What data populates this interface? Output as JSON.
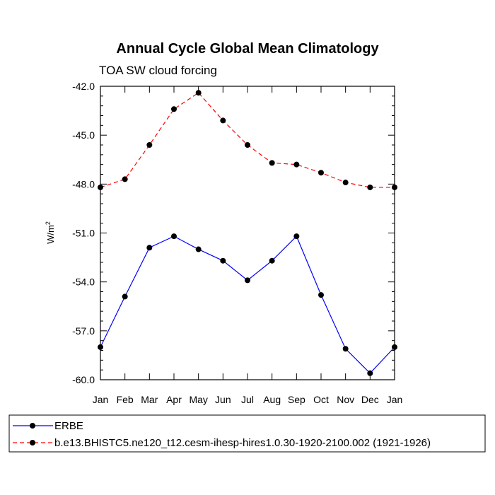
{
  "chart_data": {
    "type": "line",
    "title": "Annual Cycle Global Mean Climatology",
    "subtitle": "TOA SW cloud forcing",
    "ylabel": "W/m",
    "ylabel_sup": "2",
    "categories": [
      "Jan",
      "Feb",
      "Mar",
      "Apr",
      "May",
      "Jun",
      "Jul",
      "Aug",
      "Sep",
      "Oct",
      "Nov",
      "Dec",
      "Jan"
    ],
    "ylim": [
      -60.0,
      -42.0
    ],
    "yticks": [
      -42.0,
      -45.0,
      -48.0,
      -51.0,
      -54.0,
      -57.0,
      -60.0
    ],
    "ytick_labels": [
      "-42.0",
      "-45.0",
      "-48.0",
      "-51.0",
      "-54.0",
      "-57.0",
      "-60.0"
    ],
    "legend_position": "bottom",
    "series": [
      {
        "name": "ERBE",
        "color": "#0000ff",
        "dash": "solid",
        "values": [
          -58.0,
          -54.9,
          -51.9,
          -51.2,
          -52.0,
          -52.7,
          -53.9,
          -52.7,
          -51.2,
          -54.8,
          -58.1,
          -59.6,
          -58.0
        ]
      },
      {
        "name": "b.e13.BHISTC5.ne120_t12.cesm-ihesp-hires1.0.30-1920-2100.002 (1921-1926)",
        "color": "#ff0000",
        "dash": "dashed",
        "values": [
          -48.2,
          -47.7,
          -45.6,
          -43.4,
          -42.4,
          -44.1,
          -45.6,
          -46.7,
          -46.8,
          -47.3,
          -47.9,
          -48.2,
          -48.2
        ]
      }
    ]
  }
}
